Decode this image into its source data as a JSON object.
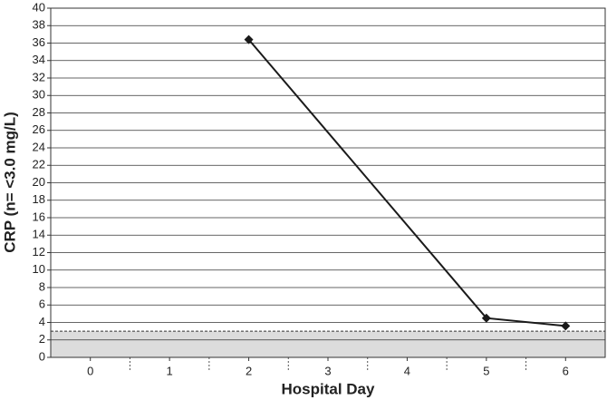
{
  "chart_data": {
    "type": "line",
    "x_label": "Hospital Day",
    "y_label": "CRP (n= <3.0 mg/L)",
    "x": [
      2,
      5,
      6
    ],
    "series": [
      {
        "name": "CRP",
        "color": "#1a1a1a",
        "values": [
          36.4,
          4.5,
          3.6
        ]
      }
    ],
    "xlim": [
      -0.5,
      6.5
    ],
    "xticks": [
      0,
      1,
      2,
      3,
      4,
      5,
      6
    ],
    "ylim": [
      0,
      40
    ],
    "yticks": [
      0,
      2,
      4,
      6,
      8,
      10,
      12,
      14,
      16,
      18,
      20,
      22,
      24,
      26,
      28,
      30,
      32,
      34,
      36,
      38,
      40
    ],
    "grid": true,
    "normal_range": [
      0,
      3
    ]
  }
}
